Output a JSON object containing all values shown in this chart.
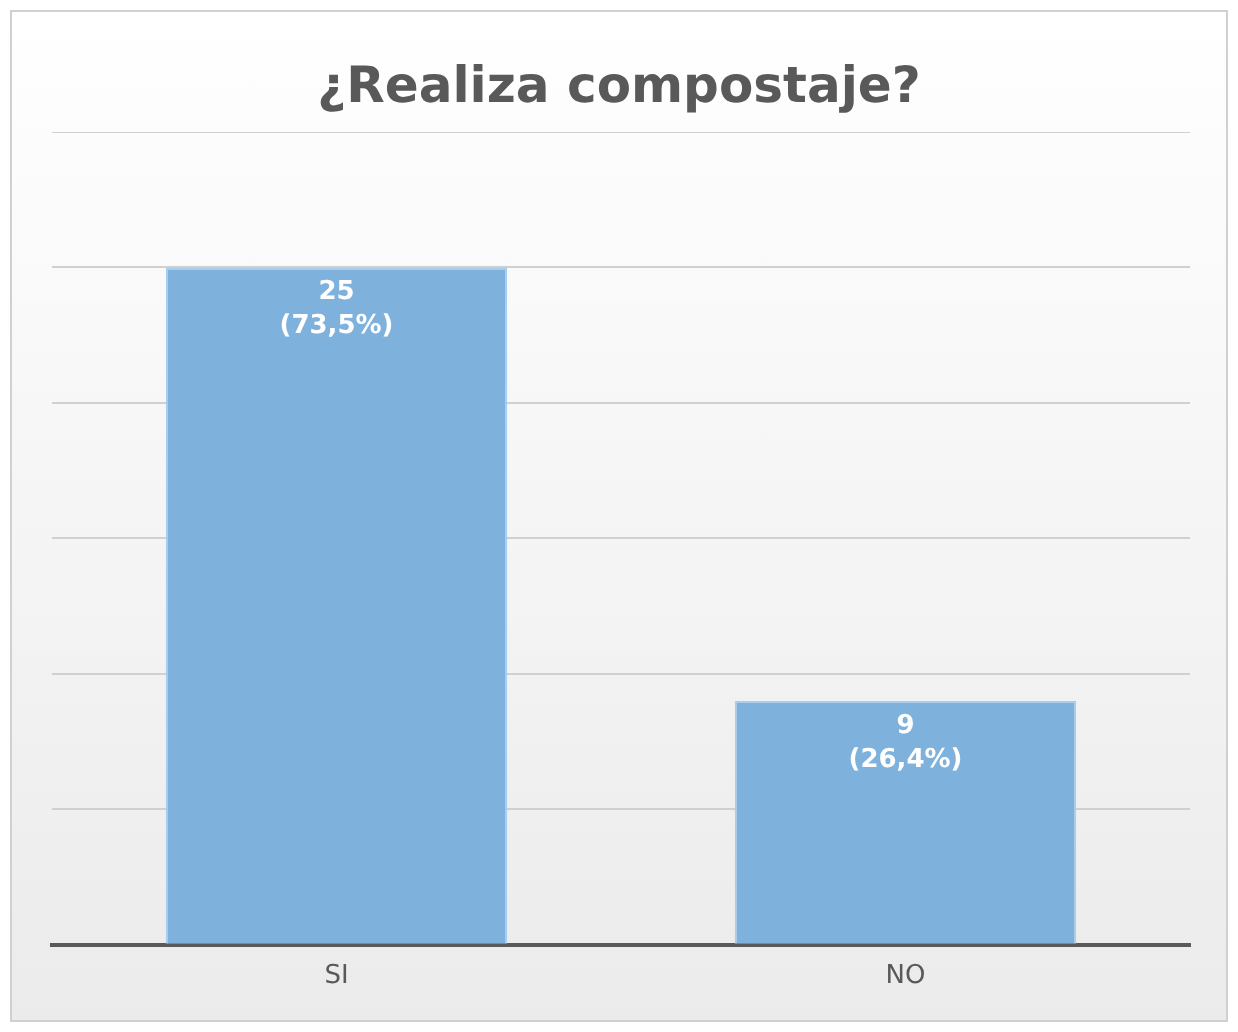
{
  "chart_data": {
    "type": "bar",
    "title": "¿Realiza compostaje?",
    "categories": [
      "SI",
      "NO"
    ],
    "values": [
      25,
      9
    ],
    "color": "#7eb2dd",
    "value_labels": [
      "25\n(73,5%)",
      "9\n(26,4%)"
    ],
    "ylim": [
      0,
      30
    ],
    "yticks": [
      {
        "value": 0,
        "label": null
      },
      {
        "value": 5,
        "label": null
      },
      {
        "value": 10,
        "label": null
      },
      {
        "value": 15,
        "label": null
      },
      {
        "value": 20,
        "label": null
      },
      {
        "value": 25,
        "label": null
      },
      {
        "value": 30,
        "label": null
      }
    ],
    "grid": "y",
    "tick_labels": "x",
    "legend": false
  }
}
